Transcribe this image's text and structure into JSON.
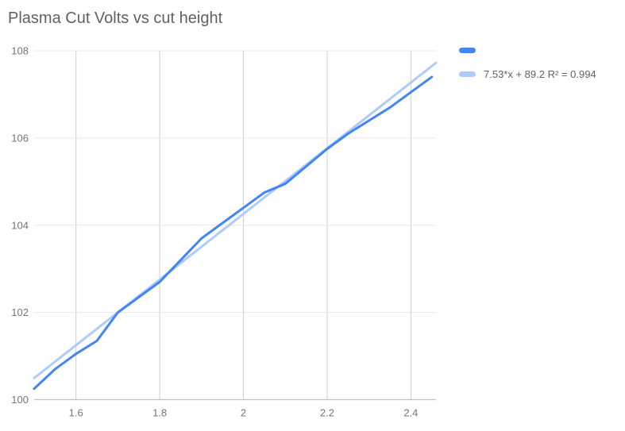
{
  "chart_data": {
    "type": "line",
    "title": "Plasma Cut Volts vs cut height",
    "xlabel": "",
    "ylabel": "",
    "x": [
      1.5,
      1.55,
      1.6,
      1.65,
      1.7,
      1.75,
      1.8,
      1.85,
      1.9,
      1.95,
      2.0,
      2.05,
      2.1,
      2.15,
      2.2,
      2.25,
      2.3,
      2.35,
      2.4,
      2.45
    ],
    "series": [
      {
        "name": "",
        "color": "#4285f4",
        "values": [
          100.25,
          100.7,
          101.05,
          101.35,
          102.0,
          102.35,
          102.7,
          103.2,
          103.7,
          104.05,
          104.4,
          104.75,
          104.95,
          105.35,
          105.75,
          106.1,
          106.4,
          106.7,
          107.05,
          107.4
        ]
      }
    ],
    "trendline": {
      "label": "7.53*x + 89.2 R² = 0.994",
      "slope": 7.53,
      "intercept": 89.2,
      "r_squared": 0.994,
      "color": "#aecbfa"
    },
    "x_ticks": {
      "values": [
        1.6,
        1.8,
        2.0,
        2.2,
        2.4
      ],
      "labels": [
        "1.6",
        "1.8",
        "2",
        "2.2",
        "2.4"
      ]
    },
    "y_ticks": {
      "values": [
        100,
        102,
        104,
        106,
        108
      ],
      "labels": [
        "100",
        "102",
        "104",
        "106",
        "108"
      ]
    },
    "xlim": [
      1.5,
      2.46
    ],
    "ylim": [
      100,
      108
    ],
    "grid": true,
    "legend_position": "right",
    "colors": {
      "background": "#ffffff",
      "title_text": "#616161",
      "tick_text": "#757575",
      "h_gridline": "#e6e6e6",
      "v_gridline": "#cdcdcd",
      "baseline": "#c2c2c2"
    }
  }
}
